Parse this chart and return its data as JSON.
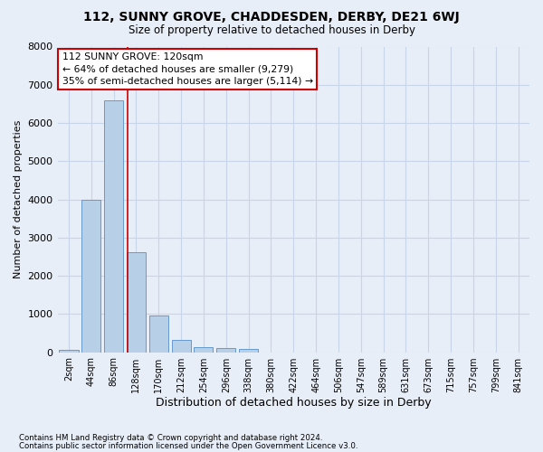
{
  "title1": "112, SUNNY GROVE, CHADDESDEN, DERBY, DE21 6WJ",
  "title2": "Size of property relative to detached houses in Derby",
  "xlabel": "Distribution of detached houses by size in Derby",
  "ylabel": "Number of detached properties",
  "footer1": "Contains HM Land Registry data © Crown copyright and database right 2024.",
  "footer2": "Contains public sector information licensed under the Open Government Licence v3.0.",
  "bar_labels": [
    "2sqm",
    "44sqm",
    "86sqm",
    "128sqm",
    "170sqm",
    "212sqm",
    "254sqm",
    "296sqm",
    "338sqm",
    "380sqm",
    "422sqm",
    "464sqm",
    "506sqm",
    "547sqm",
    "589sqm",
    "631sqm",
    "673sqm",
    "715sqm",
    "757sqm",
    "799sqm",
    "841sqm"
  ],
  "bar_values": [
    70,
    3980,
    6600,
    2620,
    960,
    310,
    130,
    100,
    80,
    0,
    0,
    0,
    0,
    0,
    0,
    0,
    0,
    0,
    0,
    0,
    0
  ],
  "bar_color": "#b8cfe8",
  "bar_edge_color": "#6699cc",
  "grid_color": "#c8d4e8",
  "background_color": "#e8eef8",
  "vline_color": "#cc0000",
  "vline_position": 2.6,
  "annotation_text": "112 SUNNY GROVE: 120sqm\n← 64% of detached houses are smaller (9,279)\n35% of semi-detached houses are larger (5,114) →",
  "annotation_box_color": "#ffffff",
  "annotation_box_edge": "#cc0000",
  "ylim": [
    0,
    8000
  ],
  "yticks": [
    0,
    1000,
    2000,
    3000,
    4000,
    5000,
    6000,
    7000,
    8000
  ]
}
